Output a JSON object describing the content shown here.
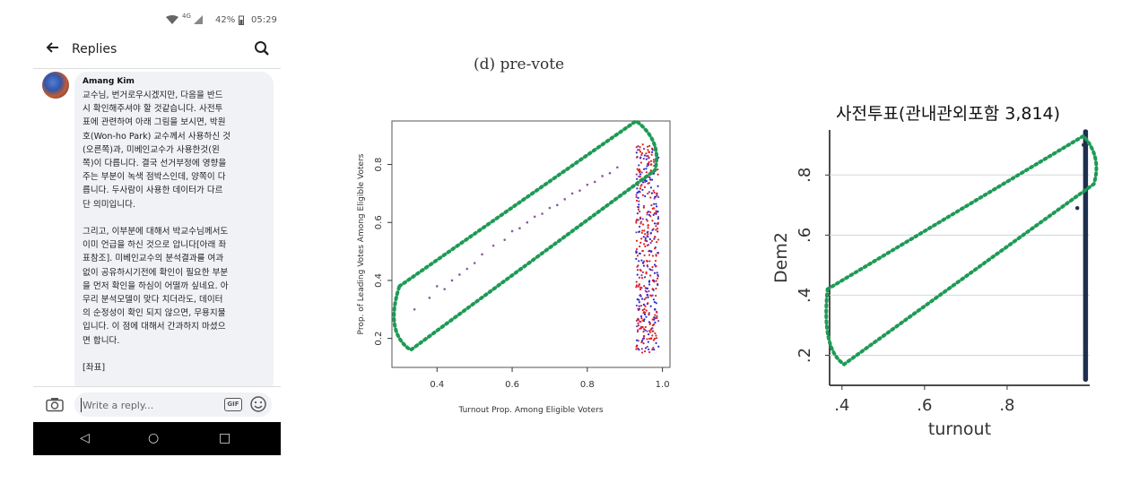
{
  "status_bar": {
    "network": "4G",
    "battery": "42%",
    "time": "05:29"
  },
  "header": {
    "title": "Replies"
  },
  "comment": {
    "author": "Amang Kim",
    "body": "교수님, 번거로우시겠지만, 다음을 반드\n시 확인해주셔야 할 것같습니다. 사전투\n표에 관련하여 아래 그림을 보시면, 박원\n호(Won-ho Park) 교수께서 사용하신 것\n(오른쪽)과, 미베인교수가 사용한것(왼\n쪽)이 다릅니다. 결국 선거부정에 영향을\n주는 부분이 녹색 점박스인데, 양쪽이 다\n릅니다. 두사람이 사용한 데이터가 다르\n단 의미입니다.\n\n그리고, 이부분에 대해서 박교수님께서도\n이미 언급을 하신 것으로 압니다[아래 좌\n표참조]. 미베인교수의 분석결과를 여과\n없이 공유하시기전에 확인이 필요한 부분\n을 먼저 확인을 하심이 어떨까 싶네요. 아\n무리 분석모델이 맞다 치더라도, 데이터\n의 순정성이 확인 되지 않으면, 무용지물\n입니다. 이 점에 대해서 간과하지 마셨으\n면 합니다.\n\n[좌표]"
  },
  "reply_bar": {
    "placeholder": "Write a reply...",
    "gif_label": "GIF"
  },
  "chart_data": [
    {
      "type": "scatter",
      "title": "(d) pre-vote",
      "xlabel": "Turnout Prop. Among Eligible Voters",
      "ylabel": "Prop. of Leading Votes Among Eligible Voters",
      "xlim": [
        0.28,
        1.02
      ],
      "ylim": [
        0.1,
        0.95
      ],
      "xticks": [
        "0.4",
        "0.6",
        "0.8",
        "1.0"
      ],
      "yticks": [
        "0.2",
        "0.4",
        "0.6",
        "0.8"
      ],
      "series": [
        {
          "name": "sparse",
          "color": "#8a5a9a",
          "x": [
            0.34,
            0.38,
            0.4,
            0.42,
            0.44,
            0.46,
            0.48,
            0.5,
            0.52,
            0.55,
            0.58,
            0.6,
            0.62,
            0.64,
            0.66,
            0.68,
            0.7,
            0.72,
            0.74,
            0.76,
            0.78,
            0.8,
            0.82,
            0.84,
            0.86,
            0.88
          ],
          "y": [
            0.3,
            0.34,
            0.38,
            0.37,
            0.4,
            0.42,
            0.44,
            0.46,
            0.49,
            0.52,
            0.54,
            0.57,
            0.58,
            0.6,
            0.62,
            0.63,
            0.65,
            0.66,
            0.68,
            0.7,
            0.71,
            0.73,
            0.74,
            0.76,
            0.77,
            0.79
          ]
        },
        {
          "name": "red cluster",
          "color": "#e02020",
          "x": [
            0.97,
            0.975,
            0.98,
            0.985,
            0.97,
            0.98
          ],
          "y": [
            0.2,
            0.4,
            0.55,
            0.7,
            0.8,
            0.85
          ]
        },
        {
          "name": "blue cluster",
          "color": "#2b2bd0",
          "x": [
            0.95,
            0.96,
            0.97,
            0.98
          ],
          "y": [
            0.2,
            0.35,
            0.5,
            0.3
          ]
        }
      ],
      "annotation": "green dotted box along diagonal"
    },
    {
      "type": "scatter",
      "title": "사전투표(관내관외포함 3,814)",
      "xlabel": "turnout",
      "ylabel": "Dem2",
      "xlim": [
        0.37,
        1.0
      ],
      "ylim": [
        0.1,
        0.95
      ],
      "xticks": [
        ".4",
        ".6",
        ".8"
      ],
      "yticks": [
        ".2",
        ".4",
        ".6",
        ".8"
      ],
      "series": [
        {
          "name": "points",
          "color": "#1e2f4f",
          "x": [
            0.99,
            0.99,
            0.99,
            0.99,
            0.985
          ],
          "y": [
            0.12,
            0.3,
            0.5,
            0.7,
            0.9
          ]
        }
      ],
      "annotation": "green dotted box along diagonal"
    }
  ],
  "colors": {
    "bubble": "#f1f2f6",
    "accent_green": "#1e9a55",
    "nav_bar": "#000000"
  }
}
